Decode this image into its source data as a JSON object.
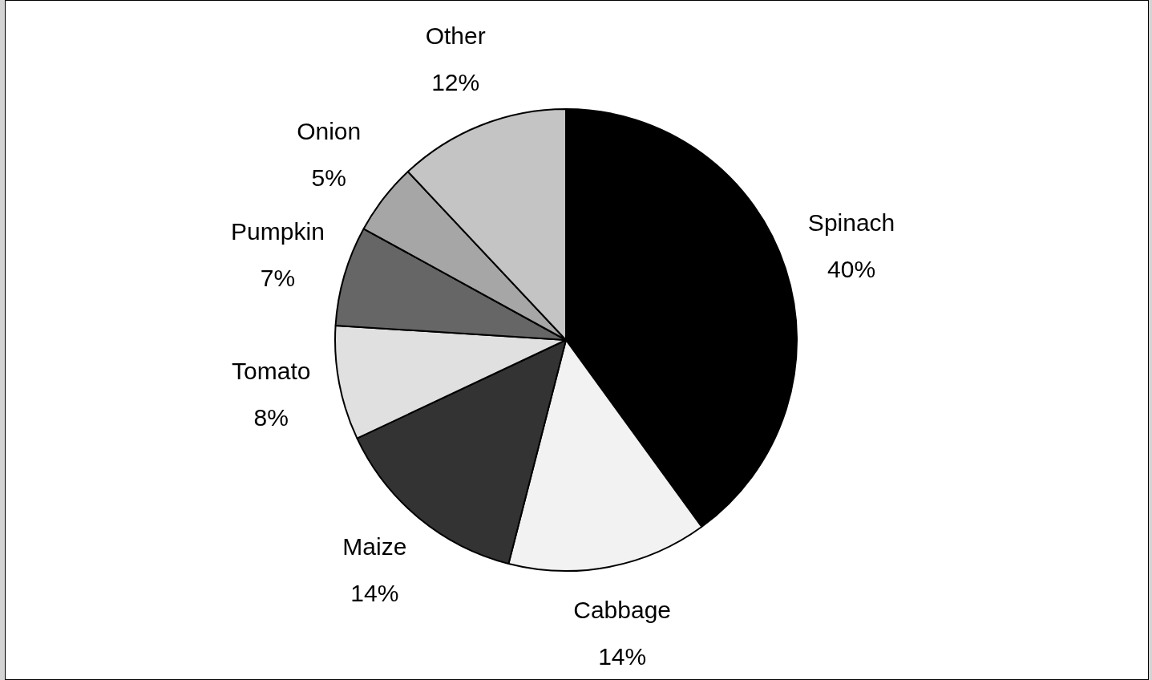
{
  "chart_data": {
    "type": "pie",
    "categories": [
      "Spinach",
      "Cabbage",
      "Maize",
      "Tomato",
      "Pumpkin",
      "Onion",
      "Other"
    ],
    "values": [
      40,
      14,
      14,
      8,
      7,
      5,
      12
    ],
    "value_labels": [
      "40%",
      "14%",
      "14%",
      "8%",
      "7%",
      "5%",
      "12%"
    ],
    "colors": [
      "#000000",
      "#f2f2f2",
      "#333333",
      "#e0e0e0",
      "#666666",
      "#a6a6a6",
      "#c4c4c4"
    ],
    "legend": false
  }
}
